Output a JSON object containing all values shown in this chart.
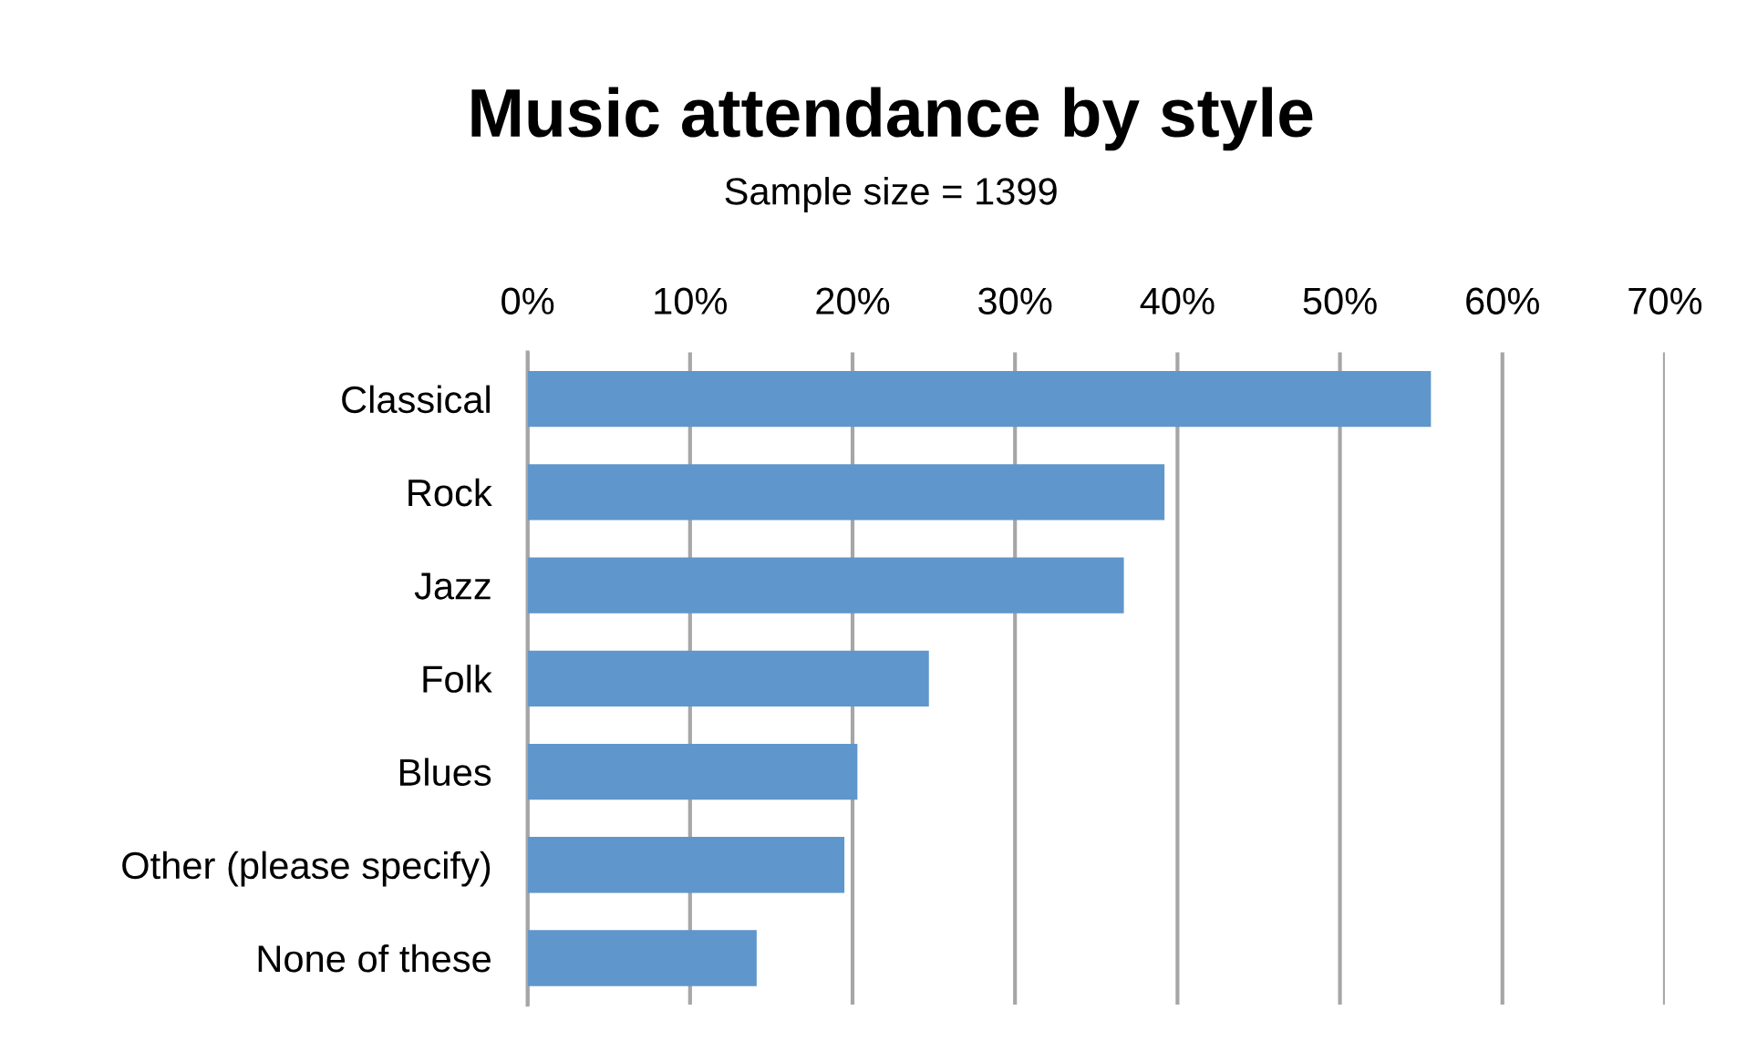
{
  "chart_data": {
    "type": "bar",
    "orientation": "horizontal",
    "title": "Music attendance by style",
    "subtitle": "Sample size = 1399",
    "categories": [
      "Classical",
      "Rock",
      "Jazz",
      "Folk",
      "Blues",
      "Other (please specify)",
      "None of these"
    ],
    "values": [
      55.6,
      39.2,
      36.7,
      24.7,
      20.3,
      19.5,
      14.1
    ],
    "color": "#5f96cc",
    "xlim": [
      0,
      70
    ],
    "xticks": [
      {
        "value": 0,
        "label": "0%"
      },
      {
        "value": 10,
        "label": "10%"
      },
      {
        "value": 20,
        "label": "20%"
      },
      {
        "value": 30,
        "label": "30%"
      },
      {
        "value": 40,
        "label": "40%"
      },
      {
        "value": 50,
        "label": "50%"
      },
      {
        "value": 60,
        "label": "60%"
      },
      {
        "value": 70,
        "label": "70%"
      }
    ],
    "grid": "x",
    "legend": false
  }
}
